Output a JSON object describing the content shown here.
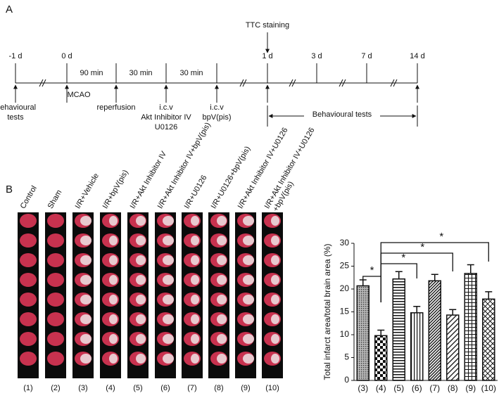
{
  "panel_a": {
    "label": "A",
    "ttc": "TTC staining",
    "days": [
      "-1 d",
      "0 d",
      "1 d",
      "3 d",
      "7 d",
      "14 d"
    ],
    "intervals": [
      "90 min",
      "30 min",
      "30 min"
    ],
    "events": [
      [
        "Behavioural",
        "tests"
      ],
      [
        "MCAO"
      ],
      [
        "reperfusion"
      ],
      [
        "i.c.v",
        "Akt Inhibitor IV",
        "U0126"
      ],
      [
        "i.c.v",
        "bpV(pis)"
      ]
    ],
    "behaviour": "Behavioural tests"
  },
  "panel_b": {
    "label": "B",
    "groups": [
      "Control",
      "Sham",
      "I/R+Vehicle",
      "I/R+bpV(pis)",
      "I/R+Akt Inhibitor IV",
      "I/R+Akt Inhibitor IV+bpV(pis)",
      "I/R+U0126",
      "I/R+U0126+bpV(pis)",
      "I/R+Akt Inhibitor IV+U0126",
      [
        "I/R+Akt Inhibitor IV+U0126",
        "+bpV(pis)"
      ]
    ],
    "numbers": [
      "(1)",
      "(2)",
      "(3)",
      "(4)",
      "(5)",
      "(6)",
      "(7)",
      "(8)",
      "(9)",
      "(10)"
    ]
  },
  "chart_data": {
    "type": "bar",
    "ylabel": "Total infarct area/total brain area (%)",
    "categories": [
      "(3)",
      "(4)",
      "(5)",
      "(6)",
      "(7)",
      "(8)",
      "(9)",
      "(10)"
    ],
    "values": [
      20.7,
      9.8,
      22.2,
      14.8,
      21.8,
      14.3,
      23.4,
      17.8
    ],
    "errors": [
      1.3,
      1.2,
      1.6,
      1.4,
      1.4,
      1.2,
      1.9,
      1.6
    ],
    "ylim": [
      0,
      30
    ],
    "yticks": [
      0,
      5,
      10,
      15,
      20,
      25,
      30
    ],
    "annotations": [
      "*",
      "*",
      "*",
      "*"
    ]
  }
}
